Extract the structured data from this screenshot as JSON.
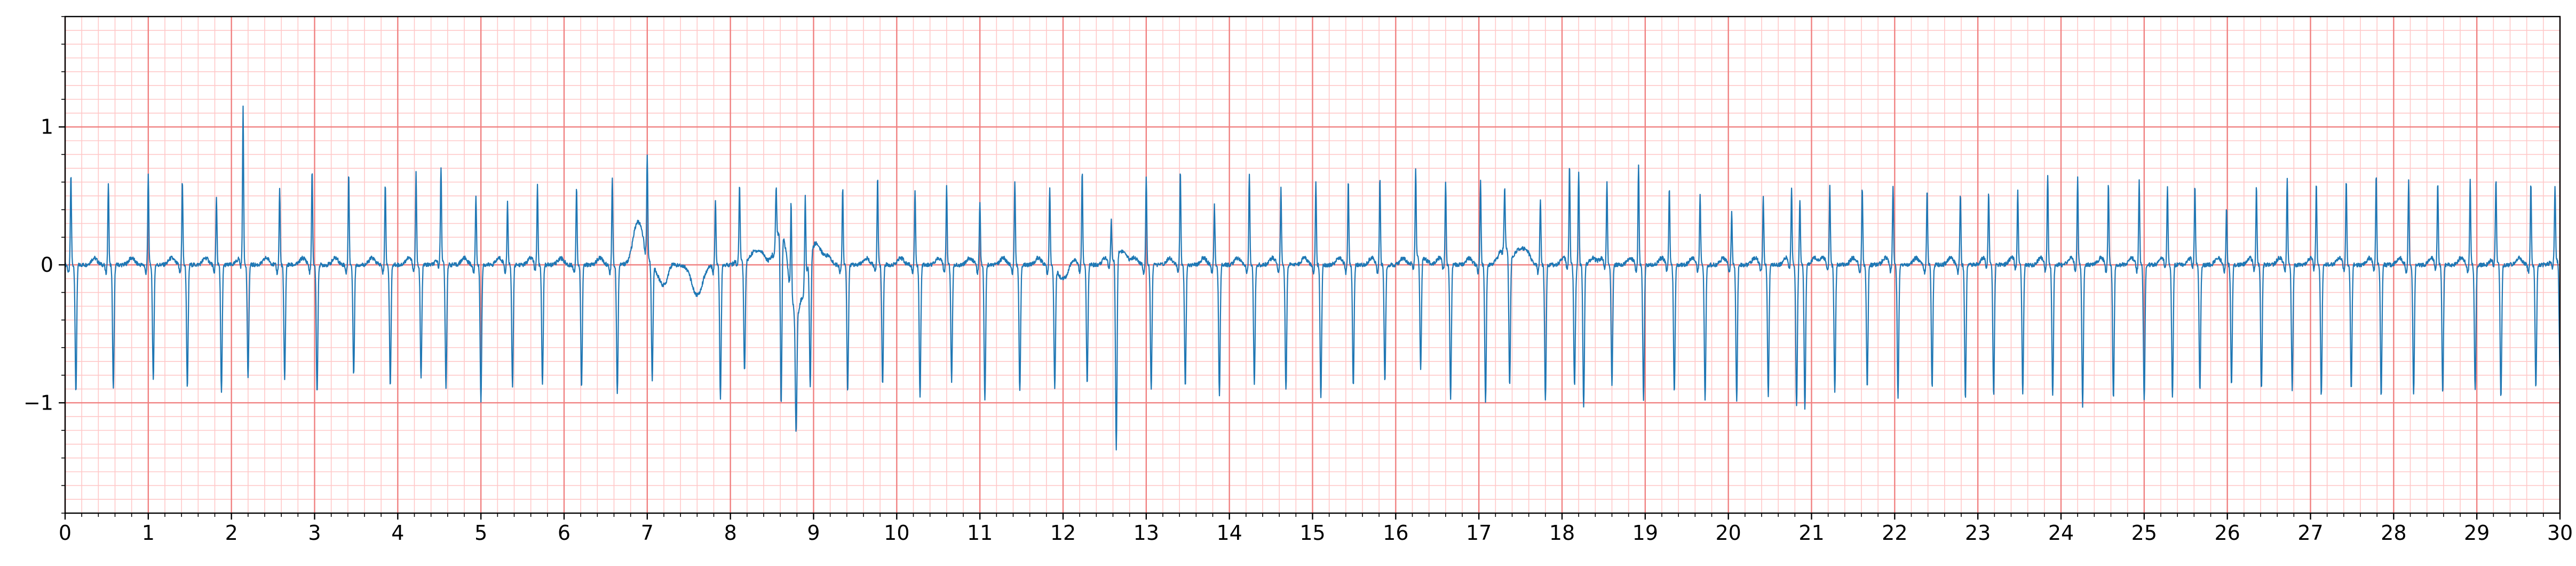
{
  "chart_data": {
    "type": "line",
    "title": "",
    "xlabel": "",
    "ylabel": "",
    "xlim": [
      0,
      30
    ],
    "ylim": [
      -1.8,
      1.8
    ],
    "x_ticks": [
      "0",
      "1",
      "2",
      "3",
      "4",
      "5",
      "6",
      "7",
      "8",
      "9",
      "10",
      "11",
      "12",
      "13",
      "14",
      "15",
      "16",
      "17",
      "18",
      "19",
      "20",
      "21",
      "22",
      "23",
      "24",
      "25",
      "26",
      "27",
      "28",
      "29",
      "30"
    ],
    "y_ticks": [
      "−1",
      "0",
      "1"
    ],
    "y_tick_values": [
      -1,
      0,
      1
    ],
    "grid": "ecg-paper",
    "colors": {
      "trace": "#1f77b4",
      "major_grid": "#f08080",
      "minor_grid": "#ffc8c8",
      "axis": "#000000"
    },
    "series": [
      {
        "beats": [
          {
            "t": 0.07,
            "r": 0.66,
            "s": -0.92
          },
          {
            "t": 0.52,
            "r": 0.59,
            "s": -0.9
          },
          {
            "t": 1.0,
            "r": 0.65,
            "s": -0.83
          },
          {
            "t": 1.41,
            "r": 0.61,
            "s": -0.89
          },
          {
            "t": 1.82,
            "r": 0.49,
            "s": -0.93
          },
          {
            "t": 2.14,
            "r": 1.11,
            "s": -0.82
          },
          {
            "t": 2.58,
            "r": 0.55,
            "s": -0.84
          },
          {
            "t": 2.97,
            "r": 0.68,
            "s": -0.93
          },
          {
            "t": 3.41,
            "r": 0.66,
            "s": -0.79
          },
          {
            "t": 3.85,
            "r": 0.59,
            "s": -0.87
          },
          {
            "t": 4.22,
            "r": 0.66,
            "s": -0.82
          },
          {
            "t": 4.52,
            "r": 0.67,
            "s": -0.9
          },
          {
            "t": 4.94,
            "r": 0.51,
            "s": -0.99
          },
          {
            "t": 5.32,
            "r": 0.45,
            "s": -0.88
          },
          {
            "t": 5.68,
            "r": 0.57,
            "s": -0.87
          },
          {
            "t": 6.15,
            "r": 0.57,
            "s": -0.89
          },
          {
            "t": 6.58,
            "r": 0.64,
            "s": -0.94
          },
          {
            "t": 7.0,
            "r": 0.72,
            "s": -0.83
          },
          {
            "t": 7.82,
            "r": 0.48,
            "s": -0.97
          },
          {
            "t": 8.11,
            "r": 0.55,
            "s": -0.8
          },
          {
            "t": 8.55,
            "r": 0.39,
            "s": -1.25
          },
          {
            "t": 8.73,
            "r": 0.64,
            "s": -0.85
          },
          {
            "t": 8.9,
            "r": 0.6,
            "s": -0.93
          },
          {
            "t": 9.35,
            "r": 0.56,
            "s": -0.92
          },
          {
            "t": 9.77,
            "r": 0.64,
            "s": -0.88
          },
          {
            "t": 10.22,
            "r": 0.55,
            "s": -0.96
          },
          {
            "t": 10.6,
            "r": 0.57,
            "s": -0.84
          },
          {
            "t": 11.0,
            "r": 0.46,
            "s": -0.99
          },
          {
            "t": 11.42,
            "r": 0.61,
            "s": -0.92
          },
          {
            "t": 11.84,
            "r": 0.56,
            "s": -0.87
          },
          {
            "t": 12.23,
            "r": 0.68,
            "s": -0.86
          },
          {
            "t": 12.58,
            "r": 0.3,
            "s": -1.4
          },
          {
            "t": 13.0,
            "r": 0.64,
            "s": -0.9
          },
          {
            "t": 13.41,
            "r": 0.68,
            "s": -0.87
          },
          {
            "t": 13.82,
            "r": 0.43,
            "s": -0.95
          },
          {
            "t": 14.24,
            "r": 0.65,
            "s": -0.87
          },
          {
            "t": 14.62,
            "r": 0.55,
            "s": -0.91
          },
          {
            "t": 15.04,
            "r": 0.6,
            "s": -0.96
          },
          {
            "t": 15.43,
            "r": 0.61,
            "s": -0.89
          },
          {
            "t": 15.81,
            "r": 0.63,
            "s": -0.85
          },
          {
            "t": 16.24,
            "r": 0.65,
            "s": -0.83
          },
          {
            "t": 16.6,
            "r": 0.59,
            "s": -0.97
          },
          {
            "t": 17.02,
            "r": 0.62,
            "s": -0.99
          },
          {
            "t": 17.31,
            "r": 0.41,
            "s": -0.96
          },
          {
            "t": 17.74,
            "r": 0.48,
            "s": -0.98
          },
          {
            "t": 18.09,
            "r": 0.71,
            "s": -0.87
          },
          {
            "t": 18.2,
            "r": 0.67,
            "s": -1.04
          },
          {
            "t": 18.54,
            "r": 0.58,
            "s": -0.87
          },
          {
            "t": 18.92,
            "r": 0.73,
            "s": -0.97
          },
          {
            "t": 19.29,
            "r": 0.56,
            "s": -0.93
          },
          {
            "t": 19.66,
            "r": 0.52,
            "s": -0.98
          },
          {
            "t": 20.04,
            "r": 0.38,
            "s": -0.98
          },
          {
            "t": 20.42,
            "r": 0.49,
            "s": -0.95
          },
          {
            "t": 20.76,
            "r": 0.55,
            "s": -0.99
          },
          {
            "t": 20.86,
            "r": 0.48,
            "s": -1.05
          },
          {
            "t": 21.22,
            "r": 0.56,
            "s": -0.92
          },
          {
            "t": 21.61,
            "r": 0.56,
            "s": -0.88
          },
          {
            "t": 21.98,
            "r": 0.58,
            "s": -0.96
          },
          {
            "t": 22.39,
            "r": 0.54,
            "s": -0.89
          },
          {
            "t": 22.79,
            "r": 0.52,
            "s": -0.97
          },
          {
            "t": 23.13,
            "r": 0.51,
            "s": -0.95
          },
          {
            "t": 23.48,
            "r": 0.52,
            "s": -0.94
          },
          {
            "t": 23.84,
            "r": 0.65,
            "s": -0.96
          },
          {
            "t": 24.2,
            "r": 0.62,
            "s": -1.02
          },
          {
            "t": 24.57,
            "r": 0.59,
            "s": -0.97
          },
          {
            "t": 24.94,
            "r": 0.62,
            "s": -0.99
          },
          {
            "t": 25.28,
            "r": 0.55,
            "s": -0.96
          },
          {
            "t": 25.61,
            "r": 0.56,
            "s": -0.91
          },
          {
            "t": 25.99,
            "r": 0.41,
            "s": -0.87
          },
          {
            "t": 26.35,
            "r": 0.57,
            "s": -0.91
          },
          {
            "t": 26.72,
            "r": 0.62,
            "s": -0.9
          },
          {
            "t": 27.07,
            "r": 0.59,
            "s": -0.95
          },
          {
            "t": 27.43,
            "r": 0.62,
            "s": -0.9
          },
          {
            "t": 27.79,
            "r": 0.65,
            "s": -0.95
          },
          {
            "t": 28.18,
            "r": 0.61,
            "s": -0.94
          },
          {
            "t": 28.53,
            "r": 0.6,
            "s": -0.93
          },
          {
            "t": 28.92,
            "r": 0.61,
            "s": -0.9
          },
          {
            "t": 29.23,
            "r": 0.59,
            "s": -0.97
          },
          {
            "t": 29.65,
            "r": 0.59,
            "s": -0.89
          },
          {
            "t": 29.94,
            "r": 0.52,
            "s": -0.8
          }
        ],
        "baseline_wander": [
          {
            "t": 6.9,
            "v": 0.28
          },
          {
            "t": 7.2,
            "v": -0.15
          },
          {
            "t": 7.6,
            "v": -0.22
          },
          {
            "t": 8.3,
            "v": 0.1
          },
          {
            "t": 8.6,
            "v": 0.25
          },
          {
            "t": 8.8,
            "v": -0.4
          },
          {
            "t": 9.05,
            "v": 0.12
          },
          {
            "t": 12.0,
            "v": -0.1
          },
          {
            "t": 12.7,
            "v": 0.1
          },
          {
            "t": 16.3,
            "v": 0.06
          },
          {
            "t": 17.3,
            "v": 0.1
          },
          {
            "t": 17.5,
            "v": 0.12
          }
        ]
      }
    ]
  }
}
